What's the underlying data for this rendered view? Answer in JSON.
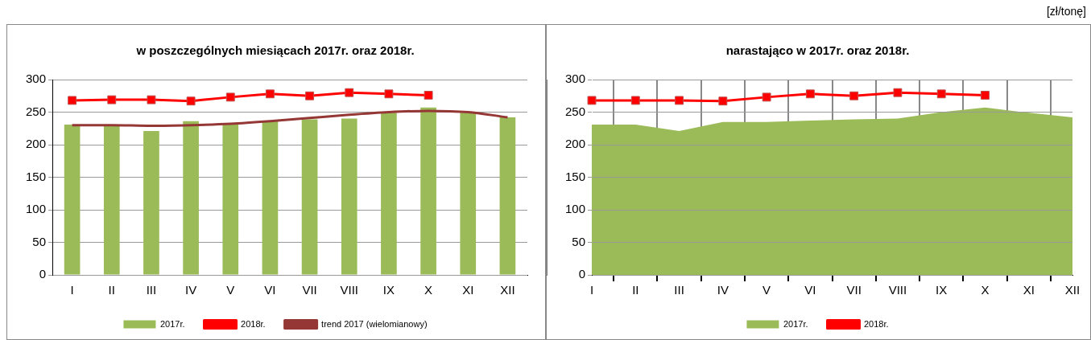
{
  "chart_data": [
    {
      "type": "bar",
      "title": "w poszczególnych miesiącach 2017r. oraz 2018r.",
      "categories": [
        "I",
        "II",
        "III",
        "IV",
        "V",
        "VI",
        "VII",
        "VIII",
        "IX",
        "X",
        "XI",
        "XII"
      ],
      "series": [
        {
          "name": "2017r.",
          "type": "bar",
          "color": "#9bbb59",
          "values": [
            231,
            230,
            221,
            236,
            232,
            236,
            239,
            240,
            249,
            257,
            249,
            242
          ]
        },
        {
          "name": "2018r.",
          "type": "line",
          "color": "#ff0000",
          "marker": "square",
          "values": [
            268,
            269,
            269,
            267,
            273,
            278,
            275,
            280,
            278,
            276,
            null,
            null
          ]
        },
        {
          "name": "trend 2017 (wielomianowy)",
          "type": "line",
          "color": "#953735",
          "marker": "none",
          "values": [
            230,
            230,
            229,
            230,
            232,
            236,
            241,
            246,
            250,
            252,
            250,
            242
          ]
        }
      ],
      "ylim": [
        0,
        300
      ],
      "yticks": [
        0,
        50,
        100,
        150,
        200,
        250,
        300
      ],
      "grid": "y",
      "legend": "bottom"
    },
    {
      "type": "area",
      "title": "narastająco w 2017r. oraz 2018r.",
      "categories": [
        "I",
        "II",
        "III",
        "IV",
        "V",
        "VI",
        "VII",
        "VIII",
        "IX",
        "X",
        "XI",
        "XII"
      ],
      "series": [
        {
          "name": "2017r.",
          "type": "area",
          "color": "#9bbb59",
          "values": [
            231,
            231,
            221,
            235,
            235,
            237,
            239,
            240,
            250,
            257,
            249,
            242
          ]
        },
        {
          "name": "2018r.",
          "type": "line",
          "color": "#ff0000",
          "marker": "square",
          "values": [
            268,
            268,
            268,
            267,
            273,
            278,
            275,
            280,
            278,
            276,
            null,
            null
          ]
        }
      ],
      "ylim": [
        0,
        300
      ],
      "yticks": [
        0,
        50,
        100,
        150,
        200,
        250,
        300
      ],
      "grid": true,
      "legend": "bottom",
      "annotations": [
        "[zł/tonę]"
      ]
    }
  ]
}
